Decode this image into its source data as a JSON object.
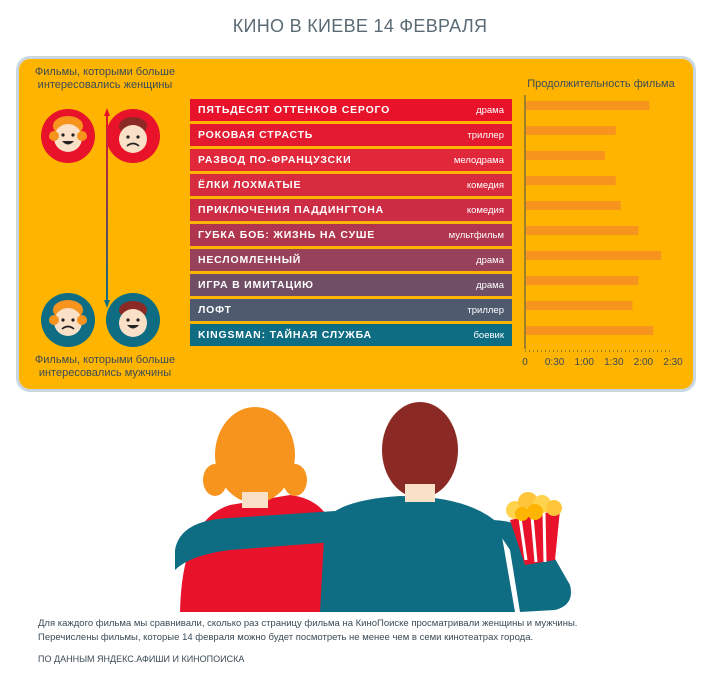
{
  "title": "КИНО В КИЕВЕ 14 ФЕВРАЛЯ",
  "women_caption": "Фильмы, которыми больше интересовались женщины",
  "men_caption": "Фильмы, которыми больше интересовались мужчины",
  "footnote_1": "Для каждого фильма мы сравнивали, сколько раз страницу фильма на КиноПоиске просматривали женщины и мужчины.",
  "footnote_2": "Перечислены фильмы, которые 14 февраля можно будет посмотреть не менее чем в семи кинотеатрах города.",
  "source": "ПО ДАННЫМ ЯНДЕКС.АФИШИ И КИНОПОИСКА",
  "colors": {
    "screen": "#ffb400",
    "bar": "#f7941d",
    "rows": [
      "#e8132b",
      "#e41a30",
      "#e1283a",
      "#d72b3f",
      "#cc2d45",
      "#b0354f",
      "#97425a",
      "#6f4e66",
      "#4e5b6f",
      "#0f6d83"
    ]
  },
  "movies": [
    {
      "title": "ПЯТЬДЕСЯТ ОТТЕНКОВ СЕРОГО",
      "genre": "драма"
    },
    {
      "title": "РОКОВАЯ СТРАСТЬ",
      "genre": "триллер"
    },
    {
      "title": "РАЗВОД ПО-ФРАНЦУЗСКИ",
      "genre": "мелодрама"
    },
    {
      "title": "ЁЛКИ ЛОХМАТЫЕ",
      "genre": "комедия"
    },
    {
      "title": "ПРИКЛЮЧЕНИЯ ПАДДИНГТОНА",
      "genre": "комедия"
    },
    {
      "title": "ГУБКА БОБ: ЖИЗНЬ НА СУШЕ",
      "genre": "мультфильм"
    },
    {
      "title": "НЕСЛОМЛЕННЫЙ",
      "genre": "драма"
    },
    {
      "title": "ИГРА В ИМИТАЦИЮ",
      "genre": "драма"
    },
    {
      "title": "ЛОФТ",
      "genre": "триллер"
    },
    {
      "title": "KINGSMAN: ТАЙНАЯ СЛУЖБА",
      "genre": "боевик"
    }
  ],
  "chart_data": {
    "type": "bar",
    "orientation": "horizontal",
    "title": "Продолжительность фильма",
    "categories": [
      "ПЯТЬДЕСЯТ ОТТЕНКОВ СЕРОГО",
      "РОКОВАЯ СТРАСТЬ",
      "РАЗВОД ПО-ФРАНЦУЗСКИ",
      "ЁЛКИ ЛОХМАТЫЕ",
      "ПРИКЛЮЧЕНИЯ ПАДДИНГТОНА",
      "ГУБКА БОБ: ЖИЗНЬ НА СУШЕ",
      "НЕСЛОМЛЕННЫЙ",
      "ИГРА В ИМИТАЦИЮ",
      "ЛОФТ",
      "KINGSMAN: ТАЙНАЯ СЛУЖБА"
    ],
    "values_minutes": [
      125,
      91,
      80,
      91,
      96,
      114,
      137,
      114,
      108,
      129
    ],
    "xlim_minutes": [
      0,
      150
    ],
    "xticks": [
      {
        "value": 0,
        "label": "0"
      },
      {
        "value": 30,
        "label": "0:30"
      },
      {
        "value": 60,
        "label": "1:00"
      },
      {
        "value": 90,
        "label": "1:30"
      },
      {
        "value": 120,
        "label": "2:00"
      },
      {
        "value": 150,
        "label": "2:30"
      }
    ],
    "grid": false
  }
}
